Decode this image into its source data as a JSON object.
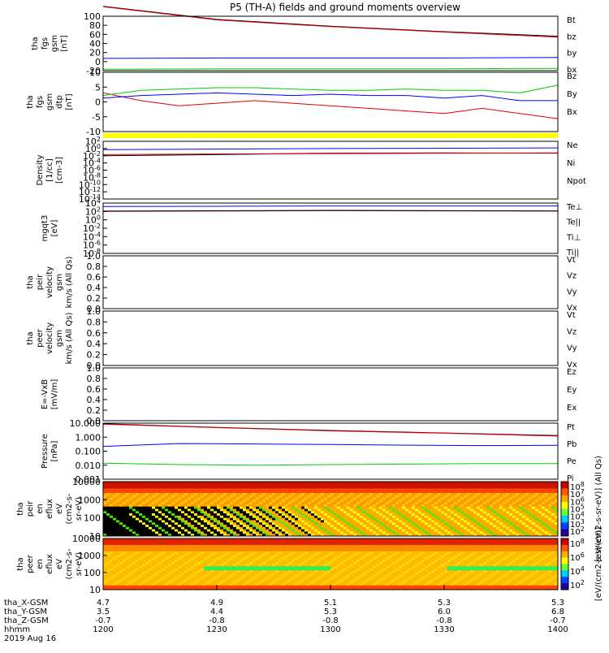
{
  "title": "P5 (TH-A) fields and ground moments overview",
  "colors": {
    "black": "#000000",
    "red": "#e00000",
    "green": "#00cc00",
    "blue": "#0000ff",
    "yellow": "#ffff00"
  },
  "chart_data": [
    {
      "type": "line",
      "ylabel": [
        "tha",
        "fgs",
        "gsm",
        "[nT]"
      ],
      "yticks": [
        "100",
        "80",
        "60",
        "40",
        "20",
        "0",
        "-20"
      ],
      "ylim": [
        -20,
        100
      ],
      "legend": [
        {
          "name": "Bt",
          "color": "#000000"
        },
        {
          "name": "bz",
          "color": "#e00000"
        },
        {
          "name": "by",
          "color": "#00cc00"
        },
        {
          "name": "bx",
          "color": "#0000ff"
        }
      ],
      "series": [
        {
          "name": "Bt",
          "color": "#000000",
          "x": [
            0,
            30,
            60,
            90,
            120
          ],
          "values": [
            122,
            93,
            78,
            66,
            56
          ]
        },
        {
          "name": "bz",
          "color": "#e00000",
          "x": [
            0,
            30,
            60,
            90,
            120
          ],
          "values": [
            121,
            92,
            77,
            65,
            54
          ]
        },
        {
          "name": "by",
          "color": "#00cc00",
          "x": [
            0,
            30,
            60,
            90,
            120
          ],
          "values": [
            -17,
            -16,
            -16,
            -16,
            -15
          ]
        },
        {
          "name": "bx",
          "color": "#0000ff",
          "x": [
            0,
            30,
            60,
            90,
            120
          ],
          "values": [
            7,
            8,
            8,
            8,
            9
          ]
        }
      ]
    },
    {
      "type": "line",
      "ylabel": [
        "tha",
        "fgs",
        "gsm",
        "dtp",
        "[nT]"
      ],
      "yticks": [
        "10",
        "5",
        "0",
        "-5",
        "-10"
      ],
      "ylim": [
        -13,
        10
      ],
      "legend": [
        {
          "name": "Bz",
          "color": "#e00000"
        },
        {
          "name": "By",
          "color": "#00cc00"
        },
        {
          "name": "Bx",
          "color": "#0000ff"
        }
      ],
      "series": [
        {
          "name": "Bz",
          "color": "#e00000",
          "x": [
            0,
            10,
            20,
            30,
            40,
            50,
            60,
            70,
            80,
            90,
            100,
            110,
            120
          ],
          "values": [
            2,
            -1,
            -3,
            -2,
            -1,
            -2,
            -3,
            -4,
            -5,
            -6,
            -4,
            -6,
            -8
          ]
        },
        {
          "name": "By",
          "color": "#00cc00",
          "x": [
            0,
            10,
            20,
            30,
            40,
            50,
            60,
            70,
            80,
            90,
            100,
            110,
            120
          ],
          "values": [
            1,
            3,
            3.5,
            4,
            4,
            3.5,
            3,
            3,
            3.5,
            3,
            3,
            2,
            5
          ]
        },
        {
          "name": "Bx",
          "color": "#0000ff",
          "x": [
            0,
            10,
            20,
            30,
            40,
            50,
            60,
            70,
            80,
            90,
            100,
            110,
            120
          ],
          "values": [
            0,
            1,
            1.5,
            2,
            1.5,
            1,
            1.5,
            1,
            1,
            0,
            1,
            -1,
            -1
          ]
        }
      ]
    },
    {
      "type": "line",
      "ylog": true,
      "ylabel": [
        "Density",
        "[1/cc]",
        "[cm-3]"
      ],
      "yticks": [
        "10^2",
        "10^0",
        "10^-2",
        "10^-4",
        "10^-6",
        "10^-8",
        "10^-10",
        "10^-12",
        "10^-14"
      ],
      "legend": [
        {
          "name": "Ne",
          "color": "#e00000"
        },
        {
          "name": "Ni",
          "color": "#000000"
        },
        {
          "name": "Npot",
          "color": "#0000ff"
        }
      ],
      "series": [
        {
          "name": "Npot",
          "color": "#0000ff",
          "x": [
            0,
            60,
            120
          ],
          "values": [
            0.5,
            1,
            1.5
          ]
        },
        {
          "name": "Ni",
          "color": "#000000",
          "x": [
            0,
            30,
            60,
            90,
            120
          ],
          "values": [
            0.01,
            0.02,
            0.05,
            0.06,
            0.05
          ]
        },
        {
          "name": "Ne",
          "color": "#e00000",
          "x": [
            0,
            30,
            60,
            90,
            120
          ],
          "values": [
            0.02,
            0.03,
            0.04,
            0.05,
            0.06
          ]
        }
      ]
    },
    {
      "type": "line",
      "ylog": true,
      "ylabel": [
        "mgqt3",
        "[eV]"
      ],
      "yticks": [
        "10^4",
        "10^2",
        "10^0",
        "10^-2",
        "10^-4",
        "10^-6",
        "10^-8"
      ],
      "legend": [
        {
          "name": "Te⊥",
          "color": "#e00000"
        },
        {
          "name": "Te||",
          "color": "#000000"
        },
        {
          "name": "Ti⊥",
          "color": "#0000ff"
        },
        {
          "name": "Ti||",
          "color": "#00cc00"
        }
      ],
      "series": [
        {
          "name": "Ti⊥",
          "color": "#0000ff",
          "x": [
            0,
            60,
            120
          ],
          "values": [
            1500,
            2000,
            2000
          ]
        },
        {
          "name": "Te⊥",
          "color": "#e00000",
          "x": [
            0,
            60,
            120
          ],
          "values": [
            100,
            150,
            120
          ]
        },
        {
          "name": "Te||",
          "color": "#000000",
          "x": [
            0,
            60,
            120
          ],
          "values": [
            120,
            180,
            130
          ]
        }
      ]
    },
    {
      "type": "line",
      "ylabel": [
        "tha",
        "peir",
        "velocity",
        "gsm",
        "km/s (All Qs)"
      ],
      "yticks": [
        "1.0",
        "0.8",
        "0.6",
        "0.4",
        "0.2",
        "0.0"
      ],
      "ylim": [
        0,
        1
      ],
      "legend": [
        {
          "name": "Vt",
          "color": "#000000"
        },
        {
          "name": "Vz",
          "color": "#e00000"
        },
        {
          "name": "Vy",
          "color": "#00cc00"
        },
        {
          "name": "Vx",
          "color": "#0000ff"
        }
      ],
      "series": []
    },
    {
      "type": "line",
      "ylabel": [
        "tha",
        "peer",
        "velocity",
        "gsm",
        "km/s (All Qs)"
      ],
      "yticks": [
        "1.0",
        "0.8",
        "0.6",
        "0.4",
        "0.2",
        "0.0"
      ],
      "ylim": [
        0,
        1
      ],
      "legend": [
        {
          "name": "Vt",
          "color": "#000000"
        },
        {
          "name": "Vz",
          "color": "#e00000"
        },
        {
          "name": "Vy",
          "color": "#00cc00"
        },
        {
          "name": "Vx",
          "color": "#0000ff"
        }
      ],
      "series": []
    },
    {
      "type": "line",
      "ylabel": [
        "E=-VxB",
        "[mV/m]"
      ],
      "yticks": [
        "1.0",
        "0.8",
        "0.6",
        "0.4",
        "0.2",
        "0.0"
      ],
      "ylim": [
        0,
        1
      ],
      "legend": [
        {
          "name": "Ez",
          "color": "#e00000"
        },
        {
          "name": "Ey",
          "color": "#00cc00"
        },
        {
          "name": "Ex",
          "color": "#0000ff"
        }
      ],
      "series": []
    },
    {
      "type": "line",
      "ylog": true,
      "ylabel": [
        "Pressure",
        "[nPa]"
      ],
      "yticks": [
        "10.000",
        "1.000",
        "0.100",
        "0.010",
        "0.001"
      ],
      "legend": [
        {
          "name": "Pt",
          "color": "#000000"
        },
        {
          "name": "Pb",
          "color": "#e00000"
        },
        {
          "name": "Pe",
          "color": "#00cc00"
        },
        {
          "name": "Pi",
          "color": "#0000ff"
        }
      ],
      "series": [
        {
          "name": "Pt",
          "color": "#000000",
          "x": [
            0,
            30,
            60,
            90,
            120
          ],
          "values": [
            9,
            5,
            3,
            2,
            1.3
          ]
        },
        {
          "name": "Pb",
          "color": "#e00000",
          "x": [
            0,
            30,
            60,
            90,
            120
          ],
          "values": [
            8.5,
            4.8,
            2.8,
            1.9,
            1.2
          ]
        },
        {
          "name": "Pi",
          "color": "#0000ff",
          "x": [
            0,
            20,
            40,
            60,
            80,
            100,
            120
          ],
          "values": [
            0.22,
            0.35,
            0.33,
            0.3,
            0.27,
            0.25,
            0.26
          ]
        },
        {
          "name": "Pe",
          "color": "#00cc00",
          "x": [
            0,
            20,
            40,
            60,
            80,
            100,
            120
          ],
          "values": [
            0.014,
            0.011,
            0.01,
            0.011,
            0.012,
            0.013,
            0.013
          ]
        }
      ]
    },
    {
      "type": "heatmap",
      "ylabel": [
        "tha",
        "peir",
        "en",
        "eflux",
        "eV",
        "(cm2-s-",
        "sr-eV)"
      ],
      "yticks": [
        "10000",
        "1000",
        "100",
        "10"
      ],
      "colorbar_label": "[eV/(cm2-s-sr-eV)] (All Qs)",
      "colorbar_ticks": [
        "10^8",
        "10^7",
        "10^6",
        "10^5",
        "10^4",
        "10^3",
        "10^2"
      ]
    },
    {
      "type": "heatmap",
      "ylabel": [
        "tha",
        "peer",
        "en",
        "eflux",
        "eV",
        "(cm2-s-",
        "sr-eV)"
      ],
      "yticks": [
        "10000",
        "1000",
        "100",
        "10"
      ],
      "colorbar_label": "[eV/(cm2-s-sr-eV)]",
      "colorbar_ticks": [
        "10^8",
        "10^6",
        "10^4",
        "10^2"
      ]
    }
  ],
  "xaxis": {
    "row_labels": [
      "tha_X-GSM",
      "tha_Y-GSM",
      "tha_Z-GSM",
      "hhmm",
      "2019 Aug 16"
    ],
    "ticks": [
      {
        "x": "4.7",
        "y": "3.5",
        "z": "-0.7",
        "t": "1200"
      },
      {
        "x": "4.9",
        "y": "4.4",
        "z": "-0.8",
        "t": "1230"
      },
      {
        "x": "5.1",
        "y": "5.3",
        "z": "-0.8",
        "t": "1300"
      },
      {
        "x": "5.3",
        "y": "6.0",
        "z": "-0.8",
        "t": "1330"
      },
      {
        "x": "5.3",
        "y": "6.8",
        "z": "-0.7",
        "t": "1400"
      }
    ]
  }
}
